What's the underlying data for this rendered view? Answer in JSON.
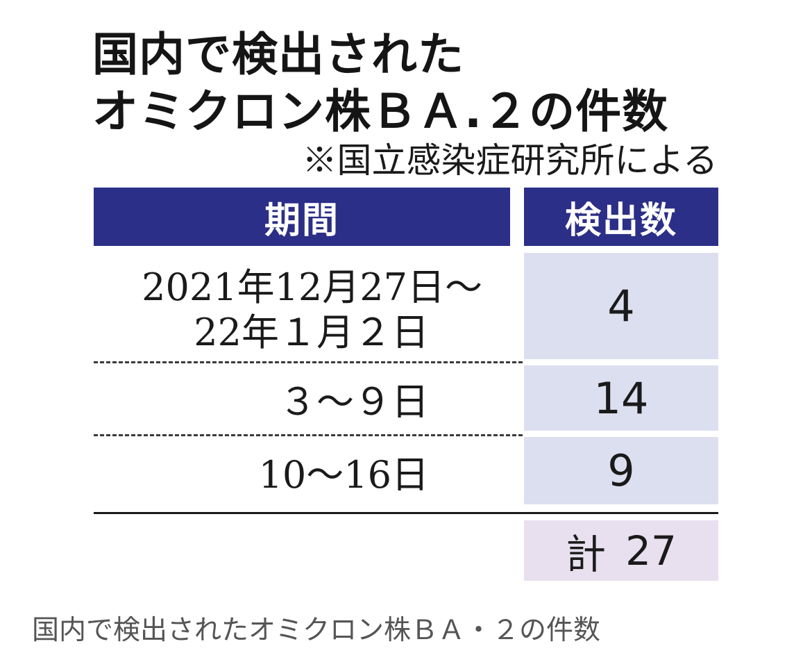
{
  "chart_data": {
    "type": "table",
    "title_line1": "国内で検出された",
    "title_line2": "オミクロン株ＢＡ.２の件数",
    "source_note": "※国立感染症研究所による",
    "columns": [
      "期間",
      "検出数"
    ],
    "rows": [
      {
        "period_line1": "2021年12月27日～",
        "period_line2": "22年１月２日",
        "count": "4"
      },
      {
        "period_line1": "３～９日",
        "count": "14"
      },
      {
        "period_line1": "10～16日",
        "count": "9"
      }
    ],
    "total": {
      "label": "計",
      "value": "27"
    },
    "colors": {
      "header_bg": "#2b2f87",
      "header_text": "#ffffff",
      "count_cell_bg": "#dcdff0",
      "total_cell_bg": "#e8e0ef"
    }
  },
  "caption": "国内で検出されたオミクロン株ＢＡ・２の件数"
}
